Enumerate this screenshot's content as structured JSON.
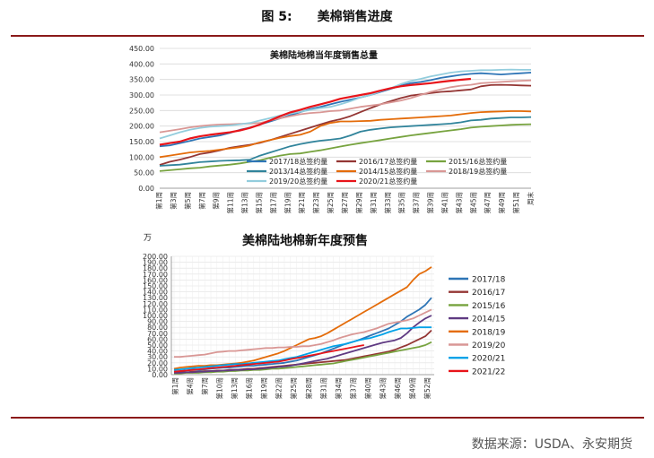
{
  "figure": {
    "number": "图 5:",
    "title": "美棉销售进度",
    "source": "数据来源：USDA、永安期货"
  },
  "chart_data": [
    {
      "type": "line",
      "title": "美棉陆地棉当年度销售总量",
      "ylim": [
        0,
        450
      ],
      "yticks": [
        "0.00",
        "50.00",
        "100.00",
        "150.00",
        "200.00",
        "250.00",
        "300.00",
        "350.00",
        "400.00",
        "450.00"
      ],
      "xticks": [
        "第1周",
        "第3周",
        "第5周",
        "第7周",
        "第9周",
        "第11周",
        "第13周",
        "第15周",
        "第17周",
        "第19周",
        "第21周",
        "第23周",
        "第25周",
        "第27周",
        "第29周",
        "第31周",
        "第33周",
        "第35周",
        "第37周",
        "第39周",
        "第41周",
        "第43周",
        "第45周",
        "第47周",
        "第49周",
        "第51周",
        "周末"
      ],
      "grid": true,
      "legend": "bottom",
      "series": [
        {
          "name": "2017/18总签约量",
          "color": "#2e75b6",
          "values": [
            135,
            138,
            145,
            152,
            160,
            165,
            170,
            178,
            188,
            195,
            205,
            215,
            225,
            235,
            245,
            255,
            262,
            270,
            278,
            285,
            292,
            300,
            310,
            320,
            330,
            338,
            342,
            348,
            355,
            360,
            365,
            368,
            370,
            368,
            366,
            368,
            370,
            372
          ]
        },
        {
          "name": "2016/17总签约量",
          "color": "#943634",
          "values": [
            75,
            85,
            92,
            100,
            110,
            115,
            122,
            130,
            135,
            140,
            146,
            155,
            165,
            175,
            185,
            195,
            205,
            215,
            222,
            232,
            245,
            258,
            270,
            280,
            290,
            298,
            302,
            306,
            310,
            312,
            315,
            318,
            328,
            332,
            333,
            332,
            331,
            330
          ]
        },
        {
          "name": "2015/16总签约量",
          "color": "#77a33f",
          "values": [
            55,
            58,
            61,
            64,
            66,
            70,
            73,
            76,
            80,
            85,
            90,
            98,
            105,
            110,
            112,
            117,
            122,
            128,
            134,
            140,
            145,
            150,
            155,
            160,
            165,
            170,
            174,
            178,
            182,
            186,
            190,
            195,
            198,
            200,
            202,
            204,
            205,
            206
          ]
        },
        {
          "name": "2013/14总签约量",
          "color": "#31849b",
          "values": [
            72,
            74,
            76,
            80,
            84,
            86,
            88,
            89,
            90,
            92,
            105,
            115,
            125,
            135,
            142,
            148,
            153,
            156,
            160,
            170,
            182,
            188,
            192,
            196,
            198,
            200,
            202,
            204,
            206,
            208,
            212,
            218,
            220,
            224,
            226,
            228,
            228,
            229
          ]
        },
        {
          "name": "2014/15总签约量",
          "color": "#e46c0a",
          "values": [
            100,
            105,
            110,
            115,
            118,
            120,
            124,
            128,
            132,
            138,
            148,
            155,
            162,
            168,
            172,
            182,
            200,
            210,
            215,
            215,
            216,
            217,
            220,
            222,
            224,
            226,
            228,
            230,
            232,
            234,
            238,
            242,
            245,
            246,
            247,
            248,
            248,
            247
          ]
        },
        {
          "name": "2018/19总签约量",
          "color": "#d99795",
          "values": [
            180,
            185,
            190,
            196,
            200,
            203,
            205,
            206,
            207,
            208,
            210,
            218,
            225,
            232,
            238,
            242,
            244,
            248,
            250,
            256,
            262,
            266,
            270,
            276,
            282,
            290,
            300,
            310,
            318,
            325,
            330,
            333,
            338,
            340,
            342,
            344,
            346,
            347
          ]
        },
        {
          "name": "2019/20总签约量",
          "color": "#93cddd",
          "values": [
            160,
            170,
            180,
            188,
            194,
            198,
            200,
            202,
            206,
            210,
            218,
            226,
            234,
            240,
            246,
            252,
            258,
            262,
            270,
            280,
            292,
            300,
            312,
            322,
            335,
            345,
            352,
            360,
            366,
            372,
            376,
            378,
            380,
            380,
            381,
            382,
            381,
            381
          ]
        },
        {
          "name": "2020/21总签约量",
          "color": "#e8141a",
          "values": [
            140,
            145,
            150,
            160,
            167,
            172,
            176,
            180,
            186,
            194,
            205,
            218,
            232,
            244,
            252,
            262,
            270,
            278,
            288,
            294,
            300,
            306,
            314,
            322,
            328,
            332,
            335,
            338,
            342,
            346,
            349,
            352
          ]
        }
      ]
    },
    {
      "type": "line",
      "title": "美棉陆地棉新年度预售",
      "ylabel": "万",
      "ylim": [
        0,
        200
      ],
      "yticks": [
        "0.00",
        "10.00",
        "20.00",
        "30.00",
        "40.00",
        "50.00",
        "60.00",
        "70.00",
        "80.00",
        "90.00",
        "100.00",
        "110.00",
        "120.00",
        "130.00",
        "140.00",
        "150.00",
        "160.00",
        "170.00",
        "180.00",
        "190.00",
        "200.00"
      ],
      "xticks": [
        "第1周",
        "第4周",
        "第7周",
        "第10周",
        "第13周",
        "第16周",
        "第19周",
        "第22周",
        "第25周",
        "第28周",
        "第31周",
        "第34周",
        "第37周",
        "第40周",
        "第43周",
        "第46周",
        "第49周",
        "第52周"
      ],
      "grid": true,
      "legend": "right",
      "series": [
        {
          "name": "2017/18",
          "color": "#2e75b6",
          "values": [
            5,
            6,
            7,
            8,
            8,
            9,
            10,
            11,
            12,
            12,
            13,
            14,
            15,
            15,
            16,
            17,
            18,
            19,
            20,
            22,
            24,
            27,
            30,
            33,
            36,
            40,
            44,
            48,
            52,
            55,
            58,
            62,
            66,
            70,
            74,
            78,
            84,
            90,
            98,
            104,
            110,
            118,
            130
          ]
        },
        {
          "name": "2016/17",
          "color": "#943634",
          "values": [
            3,
            4,
            4,
            5,
            5,
            6,
            6,
            7,
            7,
            8,
            8,
            9,
            10,
            10,
            11,
            12,
            13,
            14,
            15,
            16,
            17,
            18,
            19,
            20,
            21,
            22,
            23,
            24,
            25,
            27,
            29,
            31,
            33,
            35,
            37,
            39,
            42,
            46,
            50,
            55,
            60,
            65,
            75
          ]
        },
        {
          "name": "2015/16",
          "color": "#77a33f",
          "values": [
            2,
            2,
            3,
            3,
            3,
            4,
            4,
            5,
            5,
            6,
            6,
            7,
            7,
            8,
            8,
            9,
            10,
            10,
            11,
            12,
            13,
            14,
            15,
            16,
            17,
            18,
            19,
            21,
            23,
            25,
            27,
            29,
            31,
            33,
            35,
            37,
            39,
            41,
            43,
            45,
            47,
            50,
            55
          ]
        },
        {
          "name": "2014/15",
          "color": "#5f3a82",
          "values": [
            3,
            3,
            4,
            4,
            5,
            5,
            6,
            6,
            7,
            7,
            8,
            8,
            9,
            9,
            10,
            11,
            12,
            13,
            14,
            15,
            17,
            19,
            21,
            23,
            25,
            27,
            30,
            33,
            36,
            39,
            42,
            45,
            48,
            51,
            54,
            56,
            58,
            62,
            70,
            80,
            88,
            95,
            100
          ]
        },
        {
          "name": "2018/19",
          "color": "#e46c0a",
          "values": [
            10,
            12,
            13,
            14,
            15,
            15,
            16,
            16,
            17,
            18,
            19,
            20,
            22,
            24,
            27,
            30,
            33,
            36,
            40,
            45,
            50,
            55,
            60,
            62,
            65,
            70,
            76,
            82,
            88,
            94,
            100,
            106,
            112,
            118,
            124,
            130,
            136,
            142,
            148,
            160,
            170,
            175,
            182
          ]
        },
        {
          "name": "2019/20",
          "color": "#d99795",
          "values": [
            30,
            30,
            31,
            32,
            33,
            34,
            36,
            38,
            39,
            40,
            40,
            41,
            42,
            43,
            44,
            45,
            45,
            46,
            46,
            47,
            47,
            48,
            48,
            50,
            52,
            55,
            58,
            62,
            65,
            68,
            70,
            72,
            75,
            78,
            82,
            86,
            88,
            90,
            92,
            95,
            100,
            105,
            110
          ]
        },
        {
          "name": "2020/21",
          "color": "#00a2e8",
          "values": [
            8,
            9,
            10,
            11,
            12,
            13,
            14,
            15,
            16,
            17,
            18,
            18,
            19,
            20,
            21,
            22,
            23,
            24,
            26,
            28,
            30,
            33,
            36,
            39,
            42,
            45,
            48,
            50,
            52,
            55,
            58,
            60,
            62,
            65,
            68,
            72,
            75,
            78,
            78,
            79,
            80,
            80,
            80
          ]
        },
        {
          "name": "2021/22",
          "color": "#e8141a",
          "values": [
            5,
            6,
            7,
            8,
            9,
            10,
            11,
            12,
            13,
            14,
            15,
            16,
            17,
            18,
            19,
            20,
            21,
            22,
            24,
            26,
            28,
            30,
            32,
            34,
            36,
            38,
            40,
            42,
            44,
            46,
            48,
            50
          ]
        }
      ]
    }
  ]
}
